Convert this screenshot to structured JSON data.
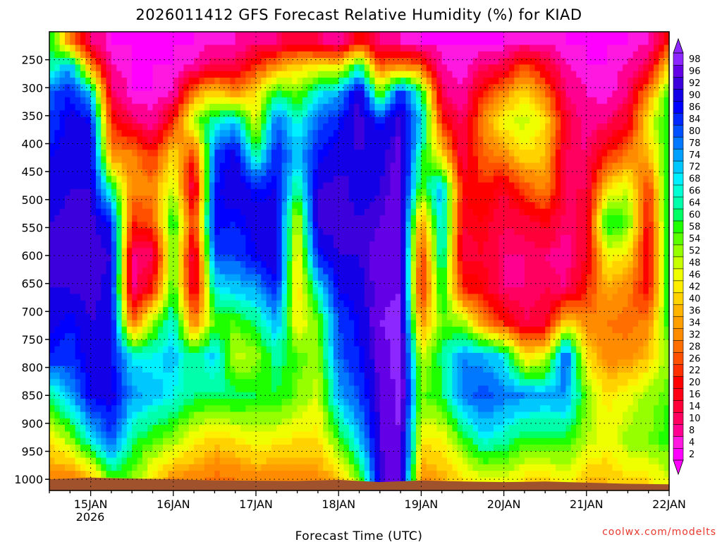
{
  "chart_data": {
    "type": "heatmap",
    "title": "2026011412 GFS Forecast Relative Humidity (%) for KIAD",
    "xlabel": "Forecast Time (UTC)",
    "ylabel": "",
    "credit": "coolwx.com/modelts",
    "x_ticks": [
      "15JAN",
      "16JAN",
      "17JAN",
      "18JAN",
      "19JAN",
      "20JAN",
      "21JAN",
      "22JAN"
    ],
    "x_subtick_label": "2026",
    "x_range_days": [
      14.5,
      22.0
    ],
    "y_ticks": [
      250,
      300,
      350,
      400,
      450,
      500,
      550,
      600,
      650,
      700,
      750,
      800,
      850,
      900,
      950,
      1000
    ],
    "y_range_hpa": [
      200,
      1020
    ],
    "colorbar_levels": [
      2,
      4,
      8,
      10,
      14,
      16,
      20,
      22,
      26,
      28,
      32,
      34,
      36,
      40,
      42,
      46,
      48,
      52,
      54,
      58,
      60,
      64,
      66,
      68,
      72,
      74,
      78,
      80,
      84,
      86,
      90,
      92,
      96,
      98
    ],
    "colorbar_colors": [
      "#ff00ff",
      "#ff18e0",
      "#ff0090",
      "#ff0060",
      "#ff0038",
      "#ff0014",
      "#ff0000",
      "#ff3000",
      "#ff5000",
      "#ff6e00",
      "#ff8c00",
      "#ffa000",
      "#ffb400",
      "#ffd200",
      "#ffee00",
      "#f0ff00",
      "#c8ff00",
      "#96ff00",
      "#5aff00",
      "#1eff00",
      "#00ff64",
      "#00ffaa",
      "#00ffd2",
      "#00f0ff",
      "#00c8ff",
      "#00a0ff",
      "#0078ff",
      "#0050ff",
      "#0028ff",
      "#0000ff",
      "#1400e6",
      "#3c00dc",
      "#6400e6",
      "#8c28ff"
    ],
    "terrain_color": "#a0522d",
    "profiles": [
      {
        "day": 14.5,
        "rh": [
          60,
          60,
          78,
          80,
          86,
          86,
          90,
          90,
          90,
          88,
          84,
          60,
          40,
          30
        ]
      },
      {
        "day": 14.75,
        "rh": [
          30,
          72,
          84,
          88,
          88,
          90,
          92,
          92,
          90,
          84,
          82,
          72,
          50,
          28
        ]
      },
      {
        "day": 15.0,
        "rh": [
          8,
          30,
          70,
          86,
          90,
          90,
          92,
          92,
          92,
          90,
          88,
          86,
          66,
          34
        ]
      },
      {
        "day": 15.25,
        "rh": [
          2,
          4,
          10,
          20,
          30,
          60,
          84,
          90,
          88,
          88,
          86,
          88,
          80,
          54
        ]
      },
      {
        "day": 15.5,
        "rh": [
          2,
          2,
          2,
          10,
          30,
          30,
          20,
          8,
          6,
          26,
          66,
          74,
          60,
          52
        ]
      },
      {
        "day": 15.75,
        "rh": [
          2,
          2,
          2,
          4,
          20,
          30,
          24,
          8,
          20,
          50,
          66,
          70,
          54,
          40
        ]
      },
      {
        "day": 16.0,
        "rh": [
          2,
          2,
          4,
          20,
          40,
          48,
          60,
          54,
          58,
          66,
          70,
          66,
          50,
          30
        ]
      },
      {
        "day": 16.25,
        "rh": [
          2,
          4,
          30,
          50,
          20,
          8,
          20,
          8,
          10,
          28,
          60,
          60,
          42,
          30
        ]
      },
      {
        "day": 16.5,
        "rh": [
          4,
          10,
          40,
          64,
          80,
          84,
          86,
          80,
          66,
          54,
          70,
          60,
          38,
          26
        ]
      },
      {
        "day": 16.75,
        "rh": [
          4,
          10,
          30,
          70,
          88,
          90,
          84,
          80,
          70,
          54,
          46,
          60,
          40,
          28
        ]
      },
      {
        "day": 17.0,
        "rh": [
          8,
          20,
          40,
          44,
          60,
          84,
          88,
          86,
          72,
          60,
          50,
          58,
          44,
          30
        ]
      },
      {
        "day": 17.25,
        "rh": [
          8,
          30,
          60,
          78,
          84,
          86,
          88,
          90,
          84,
          72,
          62,
          58,
          42,
          30
        ]
      },
      {
        "day": 17.5,
        "rh": [
          14,
          38,
          52,
          64,
          70,
          60,
          44,
          40,
          38,
          42,
          54,
          52,
          40,
          30
        ]
      },
      {
        "day": 17.75,
        "rh": [
          10,
          40,
          66,
          78,
          84,
          90,
          92,
          84,
          66,
          52,
          50,
          46,
          40,
          30
        ]
      },
      {
        "day": 18.0,
        "rh": [
          4,
          40,
          72,
          84,
          88,
          92,
          92,
          90,
          86,
          80,
          78,
          72,
          54,
          36
        ]
      },
      {
        "day": 18.25,
        "rh": [
          20,
          60,
          92,
          92,
          90,
          88,
          90,
          90,
          88,
          86,
          84,
          80,
          70,
          52
        ]
      },
      {
        "day": 18.5,
        "rh": [
          8,
          24,
          52,
          84,
          88,
          90,
          92,
          94,
          94,
          96,
          94,
          92,
          92,
          90
        ]
      },
      {
        "day": 18.75,
        "rh": [
          4,
          30,
          84,
          92,
          94,
          94,
          96,
          96,
          96,
          98,
          98,
          98,
          96,
          96
        ]
      },
      {
        "day": 19.0,
        "rh": [
          2,
          24,
          60,
          70,
          60,
          54,
          30,
          20,
          16,
          30,
          46,
          52,
          42,
          30
        ]
      },
      {
        "day": 19.25,
        "rh": [
          2,
          4,
          10,
          20,
          40,
          72,
          70,
          66,
          60,
          54,
          60,
          58,
          42,
          34
        ]
      },
      {
        "day": 19.5,
        "rh": [
          2,
          2,
          4,
          8,
          10,
          16,
          14,
          12,
          20,
          50,
          74,
          76,
          54,
          40
        ]
      },
      {
        "day": 19.75,
        "rh": [
          2,
          8,
          20,
          30,
          26,
          20,
          16,
          14,
          16,
          30,
          72,
          80,
          66,
          44
        ]
      },
      {
        "day": 20.0,
        "rh": [
          2,
          10,
          30,
          44,
          30,
          14,
          10,
          8,
          8,
          20,
          66,
          76,
          62,
          46
        ]
      },
      {
        "day": 20.25,
        "rh": [
          4,
          24,
          40,
          48,
          40,
          24,
          12,
          8,
          8,
          10,
          40,
          74,
          56,
          40
        ]
      },
      {
        "day": 20.5,
        "rh": [
          4,
          14,
          28,
          40,
          36,
          30,
          16,
          8,
          10,
          12,
          44,
          72,
          58,
          38
        ]
      },
      {
        "day": 20.75,
        "rh": [
          2,
          4,
          8,
          12,
          10,
          10,
          8,
          6,
          8,
          40,
          80,
          74,
          56,
          44
        ]
      },
      {
        "day": 21.0,
        "rh": [
          2,
          2,
          4,
          6,
          8,
          10,
          12,
          14,
          20,
          30,
          40,
          52,
          48,
          36
        ]
      },
      {
        "day": 21.25,
        "rh": [
          2,
          2,
          2,
          8,
          20,
          40,
          60,
          44,
          34,
          28,
          30,
          40,
          44,
          36
        ]
      },
      {
        "day": 21.5,
        "rh": [
          2,
          4,
          8,
          14,
          28,
          46,
          54,
          40,
          30,
          26,
          30,
          44,
          50,
          40
        ]
      },
      {
        "day": 21.75,
        "rh": [
          4,
          10,
          30,
          42,
          36,
          20,
          16,
          14,
          16,
          30,
          36,
          50,
          52,
          40
        ]
      },
      {
        "day": 22.0,
        "rh": [
          20,
          40,
          56,
          60,
          60,
          62,
          64,
          62,
          60,
          58,
          52,
          54,
          56,
          46
        ]
      }
    ],
    "profile_levels_hpa": [
      220,
      260,
      310,
      360,
      420,
      480,
      540,
      600,
      660,
      720,
      780,
      850,
      930,
      1000
    ],
    "surface_pressure_hpa": [
      {
        "day": 14.5,
        "p": 1000
      },
      {
        "day": 15.0,
        "p": 997
      },
      {
        "day": 15.3,
        "p": 998
      },
      {
        "day": 16.0,
        "p": 1000
      },
      {
        "day": 16.5,
        "p": 1002
      },
      {
        "day": 17.5,
        "p": 1003
      },
      {
        "day": 18.0,
        "p": 1001
      },
      {
        "day": 18.5,
        "p": 1005
      },
      {
        "day": 19.0,
        "p": 1002
      },
      {
        "day": 19.5,
        "p": 1004
      },
      {
        "day": 20.0,
        "p": 1005
      },
      {
        "day": 20.5,
        "p": 1004
      },
      {
        "day": 21.0,
        "p": 1006
      },
      {
        "day": 21.5,
        "p": 1008
      },
      {
        "day": 22.0,
        "p": 1009
      }
    ]
  }
}
